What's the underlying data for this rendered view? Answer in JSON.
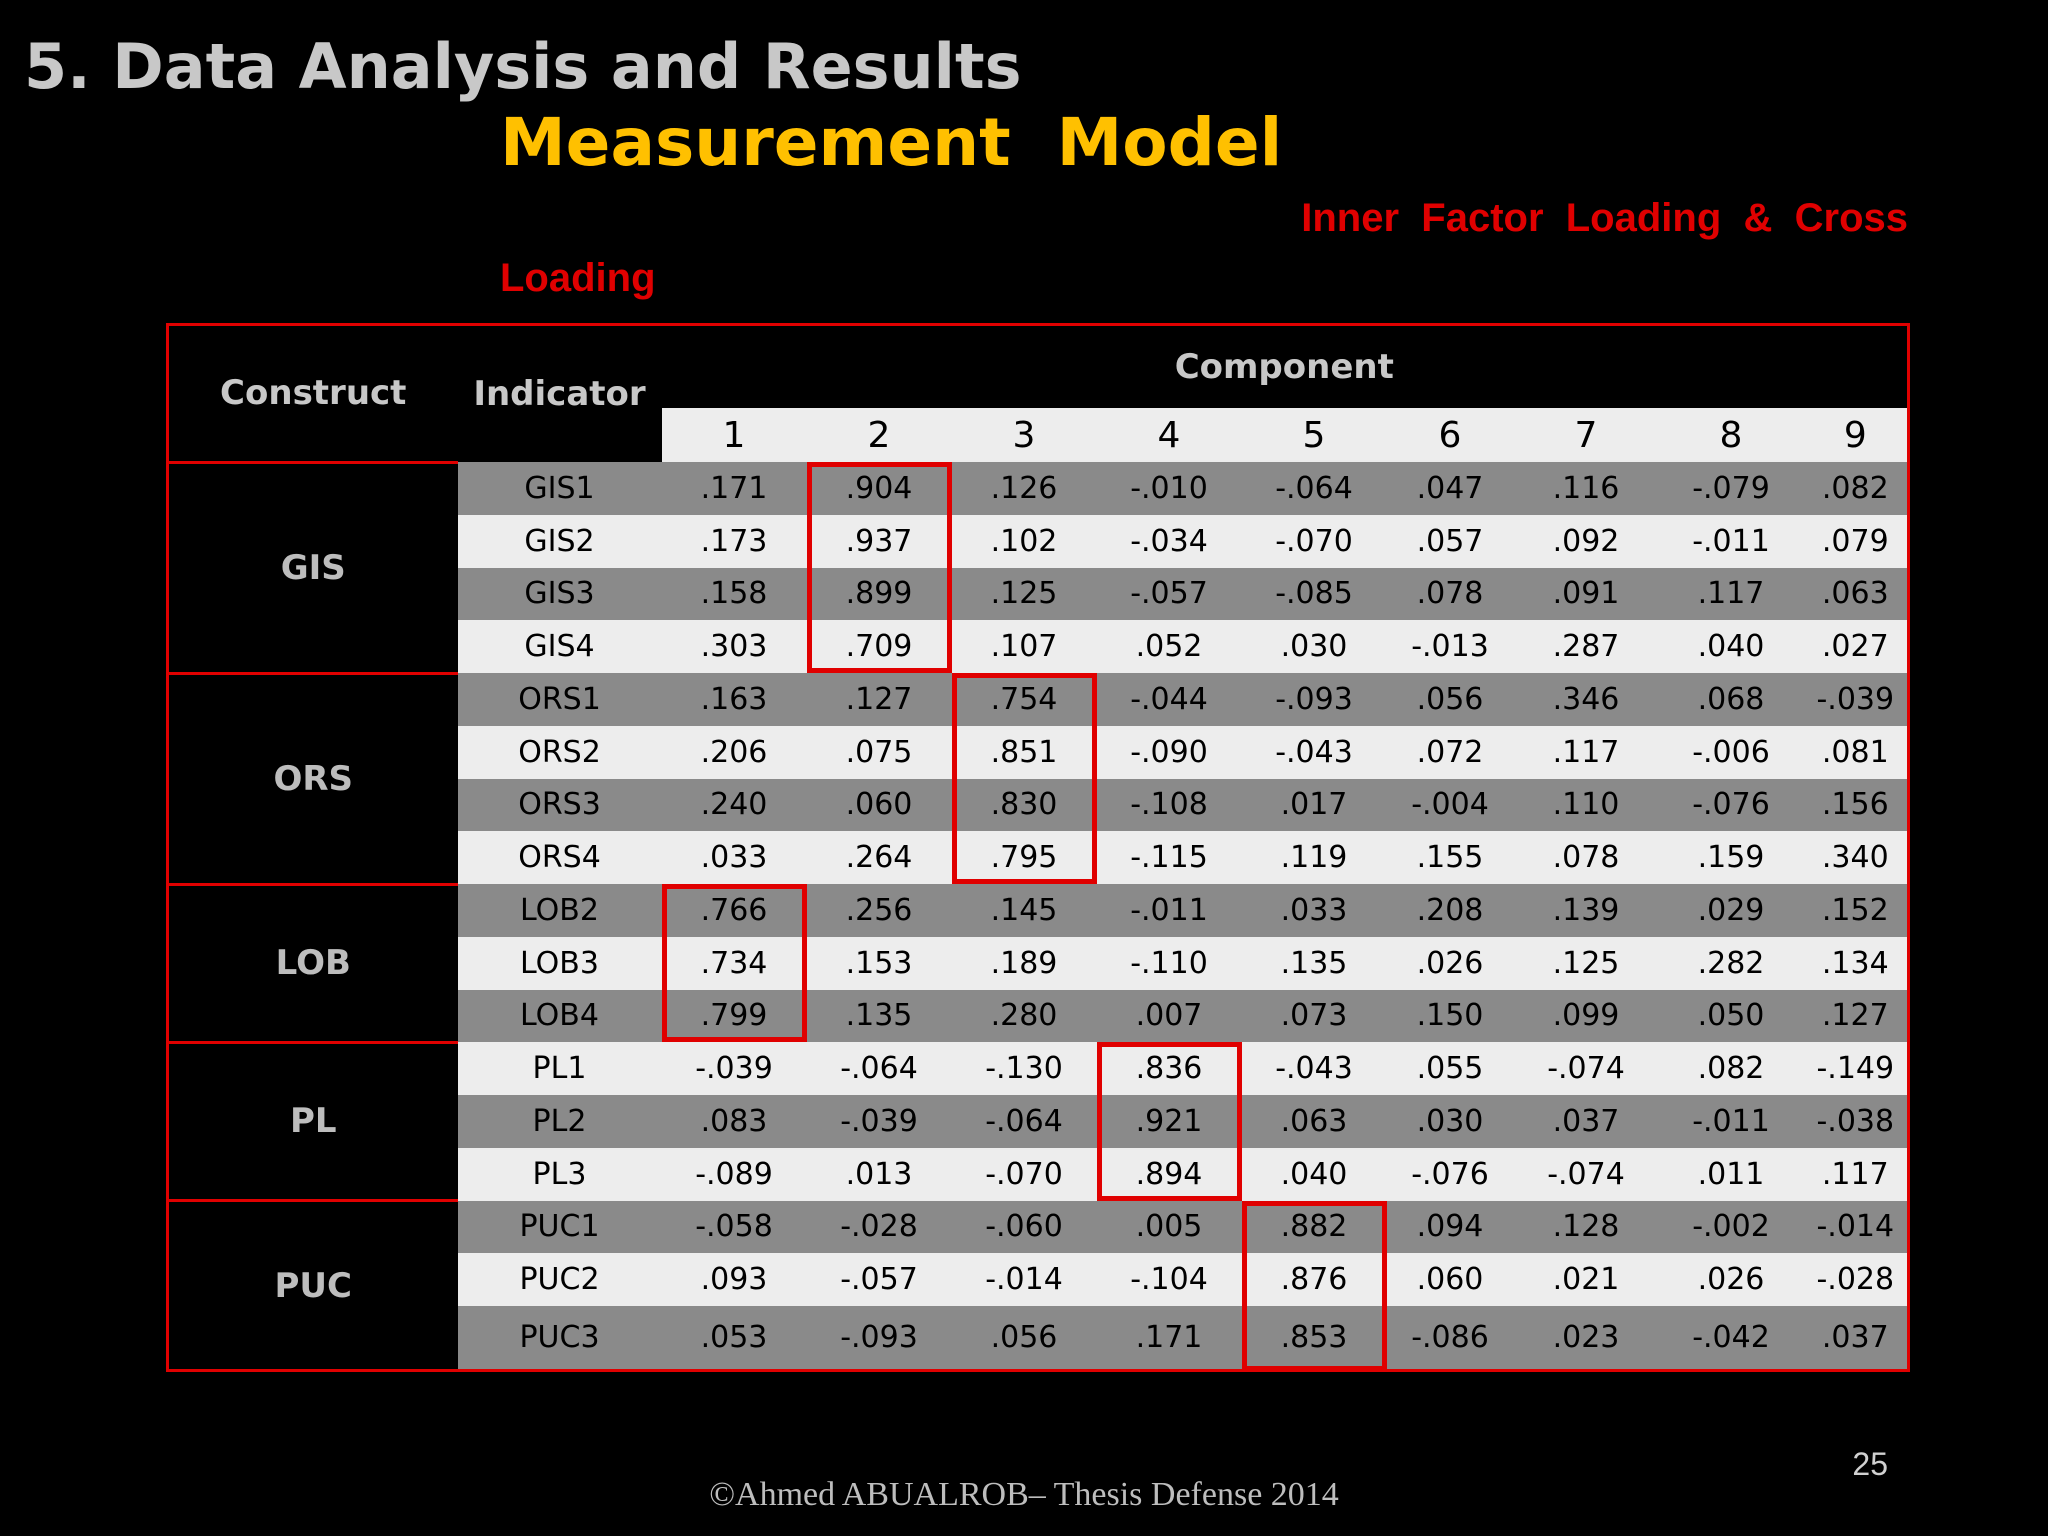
{
  "slide": {
    "title": "5. Data Analysis and Results",
    "subtitle": "Measurement  Model",
    "caption_line1": "Inner  Factor  Loading  &  Cross",
    "caption_line2": "Loading",
    "page_number": "25",
    "footer": "©Ahmed ABUALROB– Thesis Defense 2014"
  },
  "table": {
    "headers": {
      "construct": "Construct",
      "indicator": "Indicator",
      "component": "Component"
    },
    "component_numbers": [
      "1",
      "2",
      "3",
      "4",
      "5",
      "6",
      "7",
      "8",
      "9"
    ],
    "groups": [
      {
        "construct": "GIS",
        "highlight_component": 2,
        "rows": [
          {
            "indicator": "GIS1",
            "values": [
              ".171",
              ".904",
              ".126",
              "-.010",
              "-.064",
              ".047",
              ".116",
              "-.079",
              ".082"
            ]
          },
          {
            "indicator": "GIS2",
            "values": [
              ".173",
              ".937",
              ".102",
              "-.034",
              "-.070",
              ".057",
              ".092",
              "-.011",
              ".079"
            ]
          },
          {
            "indicator": "GIS3",
            "values": [
              ".158",
              ".899",
              ".125",
              "-.057",
              "-.085",
              ".078",
              ".091",
              ".117",
              ".063"
            ]
          },
          {
            "indicator": "GIS4",
            "values": [
              ".303",
              ".709",
              ".107",
              ".052",
              ".030",
              "-.013",
              ".287",
              ".040",
              ".027"
            ]
          }
        ]
      },
      {
        "construct": "ORS",
        "highlight_component": 3,
        "rows": [
          {
            "indicator": "ORS1",
            "values": [
              ".163",
              ".127",
              ".754",
              "-.044",
              "-.093",
              ".056",
              ".346",
              ".068",
              "-.039"
            ]
          },
          {
            "indicator": "ORS2",
            "values": [
              ".206",
              ".075",
              ".851",
              "-.090",
              "-.043",
              ".072",
              ".117",
              "-.006",
              ".081"
            ]
          },
          {
            "indicator": "ORS3",
            "values": [
              ".240",
              ".060",
              ".830",
              "-.108",
              ".017",
              "-.004",
              ".110",
              "-.076",
              ".156"
            ]
          },
          {
            "indicator": "ORS4",
            "values": [
              ".033",
              ".264",
              ".795",
              "-.115",
              ".119",
              ".155",
              ".078",
              ".159",
              ".340"
            ]
          }
        ]
      },
      {
        "construct": "LOB",
        "highlight_component": 1,
        "rows": [
          {
            "indicator": "LOB2",
            "values": [
              ".766",
              ".256",
              ".145",
              "-.011",
              ".033",
              ".208",
              ".139",
              ".029",
              ".152"
            ]
          },
          {
            "indicator": "LOB3",
            "values": [
              ".734",
              ".153",
              ".189",
              "-.110",
              ".135",
              ".026",
              ".125",
              ".282",
              ".134"
            ]
          },
          {
            "indicator": "LOB4",
            "values": [
              ".799",
              ".135",
              ".280",
              ".007",
              ".073",
              ".150",
              ".099",
              ".050",
              ".127"
            ]
          }
        ]
      },
      {
        "construct": "PL",
        "highlight_component": 4,
        "rows": [
          {
            "indicator": "PL1",
            "values": [
              "-.039",
              "-.064",
              "-.130",
              ".836",
              "-.043",
              ".055",
              "-.074",
              ".082",
              "-.149"
            ]
          },
          {
            "indicator": "PL2",
            "values": [
              ".083",
              "-.039",
              "-.064",
              ".921",
              ".063",
              ".030",
              ".037",
              "-.011",
              "-.038"
            ]
          },
          {
            "indicator": "PL3",
            "values": [
              "-.089",
              ".013",
              "-.070",
              ".894",
              ".040",
              "-.076",
              "-.074",
              ".011",
              ".117"
            ]
          }
        ]
      },
      {
        "construct": "PUC",
        "highlight_component": 5,
        "rows": [
          {
            "indicator": "PUC1",
            "values": [
              "-.058",
              "-.028",
              "-.060",
              ".005",
              ".882",
              ".094",
              ".128",
              "-.002",
              "-.014"
            ]
          },
          {
            "indicator": "PUC2",
            "values": [
              ".093",
              "-.057",
              "-.014",
              "-.104",
              ".876",
              ".060",
              ".021",
              ".026",
              "-.028"
            ]
          },
          {
            "indicator": "PUC3",
            "values": [
              ".053",
              "-.093",
              ".056",
              ".171",
              ".853",
              "-.086",
              ".023",
              "-.042",
              ".037"
            ]
          }
        ]
      }
    ]
  },
  "colors": {
    "background": "#000000",
    "title": "#c8c8c8",
    "subtitle": "#ffc000",
    "caption": "#e00000",
    "border": "#e00000",
    "row_dark": "#8a8a8a",
    "row_light": "#ededed"
  }
}
